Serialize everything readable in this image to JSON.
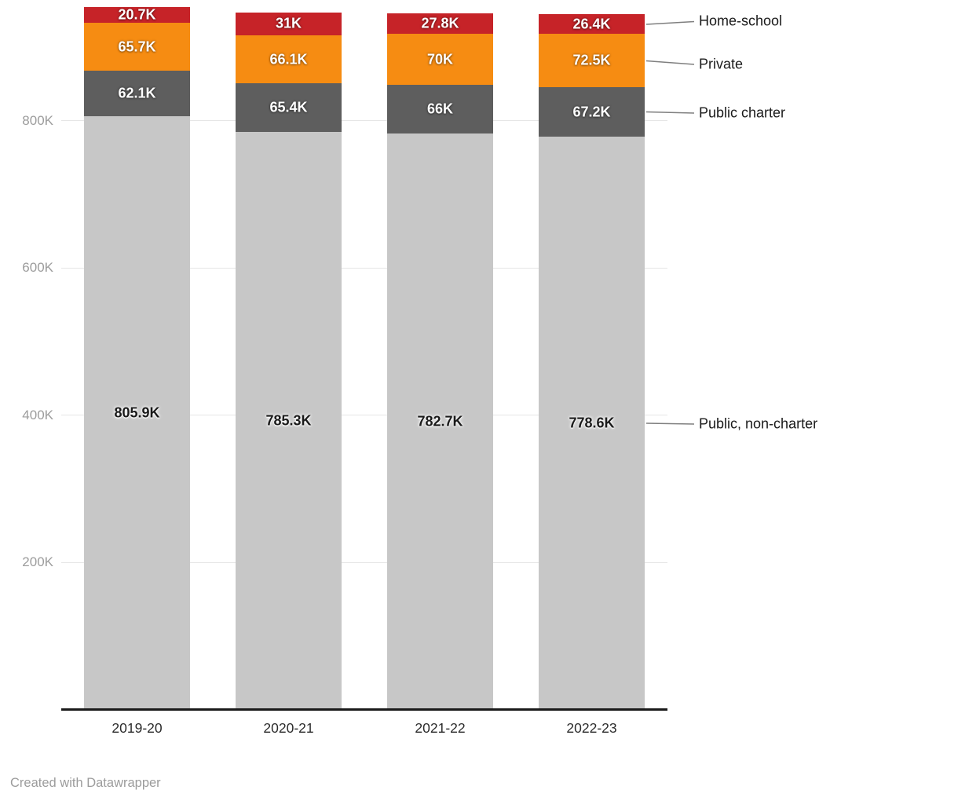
{
  "chart_data": {
    "type": "bar",
    "variant": "stacked-column",
    "categories": [
      "2019-20",
      "2020-21",
      "2021-22",
      "2022-23"
    ],
    "series": [
      {
        "name": "Public, non-charter",
        "color": "#c7c7c7",
        "values": [
          805.9,
          785.3,
          782.7,
          778.6
        ],
        "labels": [
          "805.9K",
          "785.3K",
          "782.7K",
          "778.6K"
        ]
      },
      {
        "name": "Public charter",
        "color": "#5e5e5e",
        "values": [
          62.1,
          65.4,
          66,
          67.2
        ],
        "labels": [
          "62.1K",
          "65.4K",
          "66K",
          "67.2K"
        ]
      },
      {
        "name": "Private",
        "color": "#f68c12",
        "values": [
          65.7,
          66.1,
          70,
          72.5
        ],
        "labels": [
          "65.7K",
          "66.1K",
          "70K",
          "72.5K"
        ]
      },
      {
        "name": "Home-school",
        "color": "#c62328",
        "values": [
          20.7,
          31,
          27.8,
          26.4
        ],
        "labels": [
          "20.7K",
          "31K",
          "27.8K",
          "26.4K"
        ]
      }
    ],
    "y_axis": {
      "ticks": [
        {
          "value": 200,
          "label": "200K"
        },
        {
          "value": 400,
          "label": "400K"
        },
        {
          "value": 600,
          "label": "600K"
        },
        {
          "value": 800,
          "label": "800K"
        }
      ]
    },
    "ylim": [
      0,
      960
    ],
    "grid": true,
    "legend_position": "right-direct-labels"
  },
  "footer": {
    "text": "Created with Datawrapper"
  }
}
